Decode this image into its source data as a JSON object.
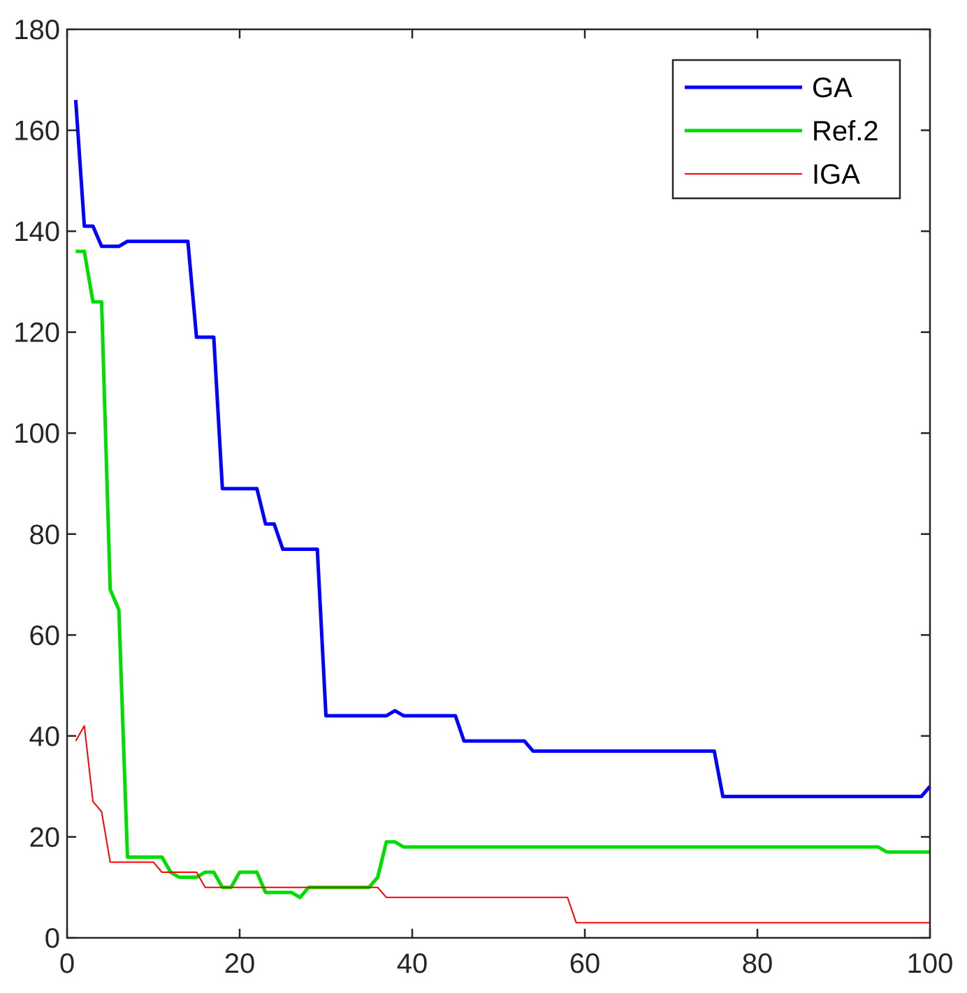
{
  "chart_data": {
    "type": "line",
    "title": "",
    "xlabel": "",
    "ylabel": "",
    "xlim": [
      0,
      100
    ],
    "ylim": [
      0,
      180
    ],
    "xticks": [
      0,
      20,
      40,
      60,
      80,
      100
    ],
    "yticks": [
      0,
      20,
      40,
      60,
      80,
      100,
      120,
      140,
      160,
      180
    ],
    "grid": false,
    "legend_position": "top-right",
    "series": [
      {
        "name": "GA",
        "color": "#0000ff",
        "line_width": "thick",
        "x": [
          1,
          2,
          3,
          4,
          5,
          6,
          7,
          8,
          9,
          10,
          11,
          12,
          13,
          14,
          15,
          16,
          17,
          18,
          19,
          20,
          21,
          22,
          23,
          24,
          25,
          26,
          27,
          28,
          29,
          30,
          31,
          32,
          33,
          34,
          35,
          36,
          37,
          38,
          39,
          40,
          41,
          42,
          43,
          44,
          45,
          46,
          47,
          48,
          49,
          50,
          51,
          52,
          53,
          54,
          55,
          56,
          57,
          58,
          59,
          60,
          61,
          62,
          63,
          64,
          65,
          66,
          67,
          68,
          69,
          70,
          71,
          72,
          73,
          74,
          75,
          76,
          77,
          78,
          79,
          80,
          81,
          82,
          83,
          84,
          85,
          86,
          87,
          88,
          89,
          90,
          91,
          92,
          93,
          94,
          95,
          96,
          97,
          98,
          99,
          100
        ],
        "y": [
          166,
          141,
          141,
          137,
          137,
          137,
          138,
          138,
          138,
          138,
          138,
          138,
          138,
          138,
          119,
          119,
          119,
          89,
          89,
          89,
          89,
          89,
          82,
          82,
          77,
          77,
          77,
          77,
          77,
          44,
          44,
          44,
          44,
          44,
          44,
          44,
          44,
          45,
          44,
          44,
          44,
          44,
          44,
          44,
          44,
          39,
          39,
          39,
          39,
          39,
          39,
          39,
          39,
          37,
          37,
          37,
          37,
          37,
          37,
          37,
          37,
          37,
          37,
          37,
          37,
          37,
          37,
          37,
          37,
          37,
          37,
          37,
          37,
          37,
          37,
          28,
          28,
          28,
          28,
          28,
          28,
          28,
          28,
          28,
          28,
          28,
          28,
          28,
          28,
          28,
          28,
          28,
          28,
          28,
          28,
          28,
          28,
          28,
          28,
          30
        ]
      },
      {
        "name": "Ref.2",
        "color": "#00dd00",
        "line_width": "thick",
        "x": [
          1,
          2,
          3,
          4,
          5,
          6,
          7,
          8,
          9,
          10,
          11,
          12,
          13,
          14,
          15,
          16,
          17,
          18,
          19,
          20,
          21,
          22,
          23,
          24,
          25,
          26,
          27,
          28,
          29,
          30,
          31,
          32,
          33,
          34,
          35,
          36,
          37,
          38,
          39,
          40,
          41,
          42,
          43,
          44,
          45,
          46,
          47,
          48,
          49,
          50,
          51,
          52,
          53,
          54,
          55,
          56,
          57,
          58,
          59,
          60,
          61,
          62,
          63,
          64,
          65,
          66,
          67,
          68,
          69,
          70,
          71,
          72,
          73,
          74,
          75,
          76,
          77,
          78,
          79,
          80,
          81,
          82,
          83,
          84,
          85,
          86,
          87,
          88,
          89,
          90,
          91,
          92,
          93,
          94,
          95,
          96,
          97,
          98,
          99,
          100
        ],
        "y": [
          136,
          136,
          126,
          126,
          69,
          65,
          16,
          16,
          16,
          16,
          16,
          13,
          12,
          12,
          12,
          13,
          13,
          10,
          10,
          13,
          13,
          13,
          9,
          9,
          9,
          9,
          8,
          10,
          10,
          10,
          10,
          10,
          10,
          10,
          10,
          12,
          19,
          19,
          18,
          18,
          18,
          18,
          18,
          18,
          18,
          18,
          18,
          18,
          18,
          18,
          18,
          18,
          18,
          18,
          18,
          18,
          18,
          18,
          18,
          18,
          18,
          18,
          18,
          18,
          18,
          18,
          18,
          18,
          18,
          18,
          18,
          18,
          18,
          18,
          18,
          18,
          18,
          18,
          18,
          18,
          18,
          18,
          18,
          18,
          18,
          18,
          18,
          18,
          18,
          18,
          18,
          18,
          18,
          18,
          17,
          17,
          17,
          17,
          17,
          17
        ]
      },
      {
        "name": "IGA",
        "color": "#ff0000",
        "line_width": "thin",
        "x": [
          1,
          2,
          3,
          4,
          5,
          6,
          7,
          8,
          9,
          10,
          11,
          12,
          13,
          14,
          15,
          16,
          17,
          18,
          19,
          20,
          21,
          22,
          23,
          24,
          25,
          26,
          27,
          28,
          29,
          30,
          31,
          32,
          33,
          34,
          35,
          36,
          37,
          38,
          39,
          40,
          41,
          42,
          43,
          44,
          45,
          46,
          47,
          48,
          49,
          50,
          51,
          52,
          53,
          54,
          55,
          56,
          57,
          58,
          59,
          60,
          61,
          62,
          63,
          64,
          65,
          66,
          67,
          68,
          69,
          70,
          71,
          72,
          73,
          74,
          75,
          76,
          77,
          78,
          79,
          80,
          81,
          82,
          83,
          84,
          85,
          86,
          87,
          88,
          89,
          90,
          91,
          92,
          93,
          94,
          95,
          96,
          97,
          98,
          99,
          100
        ],
        "y": [
          39,
          42,
          27,
          25,
          15,
          15,
          15,
          15,
          15,
          15,
          13,
          13,
          13,
          13,
          13,
          10,
          10,
          10,
          10,
          10,
          10,
          10,
          10,
          10,
          10,
          10,
          10,
          10,
          10,
          10,
          10,
          10,
          10,
          10,
          10,
          10,
          8,
          8,
          8,
          8,
          8,
          8,
          8,
          8,
          8,
          8,
          8,
          8,
          8,
          8,
          8,
          8,
          8,
          8,
          8,
          8,
          8,
          8,
          3,
          3,
          3,
          3,
          3,
          3,
          3,
          3,
          3,
          3,
          3,
          3,
          3,
          3,
          3,
          3,
          3,
          3,
          3,
          3,
          3,
          3,
          3,
          3,
          3,
          3,
          3,
          3,
          3,
          3,
          3,
          3,
          3,
          3,
          3,
          3,
          3,
          3,
          3,
          3,
          3,
          3
        ]
      }
    ]
  }
}
